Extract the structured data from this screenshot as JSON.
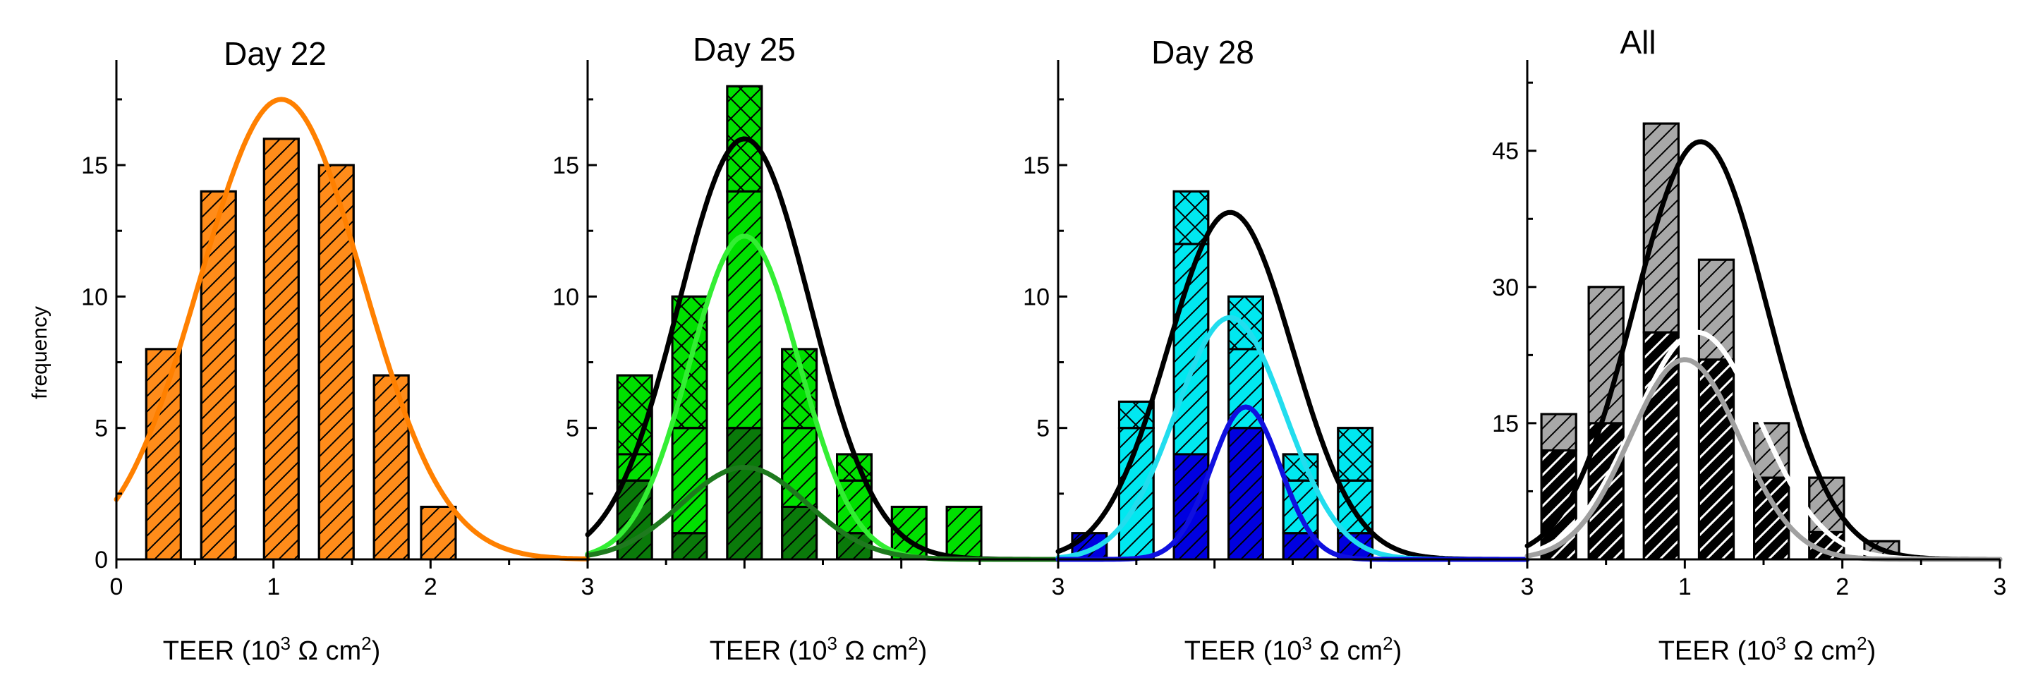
{
  "figure": {
    "ylabel_left": "frequency",
    "xlabel": "TEER (10",
    "xlabel_exp": "3",
    "xlabel_unit": " Ω cm",
    "xlabel_exp2": "2",
    "xlabel_close": ")"
  },
  "chart_data": [
    {
      "type": "bar",
      "title": "Day 22",
      "xlabel": "TEER (10^3 Ω cm^2)",
      "ylabel": "frequency",
      "xlim": [
        0,
        3
      ],
      "ylim": [
        0,
        19
      ],
      "xticks": [
        0,
        1,
        2,
        3
      ],
      "xtick_labels": [
        "0",
        "1",
        "2",
        "3"
      ],
      "yticks": [
        0,
        5,
        10,
        15
      ],
      "ytick_labels": [
        "0",
        "5",
        "10",
        "15"
      ],
      "bin_width": 0.25,
      "bins": [
        {
          "x": 0.3,
          "total": 8
        },
        {
          "x": 0.65,
          "total": 14
        },
        {
          "x": 1.05,
          "total": 16
        },
        {
          "x": 1.4,
          "total": 15
        },
        {
          "x": 1.75,
          "total": 7
        },
        {
          "x": 2.05,
          "total": 2
        }
      ],
      "series": [
        {
          "name": "Day 22",
          "color": "#ff8c1a",
          "hatch": "diag",
          "values": [
            8,
            14,
            16,
            15,
            7,
            2
          ]
        }
      ],
      "fits": [
        {
          "name": "Gaussian fit",
          "color": "#ff8000",
          "amplitude": 17.5,
          "mean": 1.05,
          "sd": 0.52
        }
      ]
    },
    {
      "type": "bar",
      "title": "Day 25",
      "xlabel": "TEER (10^3 Ω cm^2)",
      "xlim": [
        0,
        3
      ],
      "ylim": [
        0,
        19
      ],
      "xticks": [
        0,
        3
      ],
      "xtick_labels": [
        "",
        "3"
      ],
      "yticks": [
        0,
        5,
        10,
        15
      ],
      "ytick_labels": [
        "",
        "5",
        "10",
        "15"
      ],
      "bin_width": 0.25,
      "bins": [
        {
          "x": 0.3,
          "segments": [
            {
              "v": 3,
              "color": "#0a7a0a",
              "hatch": "diag"
            },
            {
              "v": 1,
              "color": "#00e000",
              "hatch": "diag"
            },
            {
              "v": 3,
              "color": "#00e000",
              "hatch": "cross"
            }
          ]
        },
        {
          "x": 0.65,
          "segments": [
            {
              "v": 1,
              "color": "#0a7a0a",
              "hatch": "diag"
            },
            {
              "v": 4,
              "color": "#00e000",
              "hatch": "diag"
            },
            {
              "v": 5,
              "color": "#00e000",
              "hatch": "cross"
            }
          ]
        },
        {
          "x": 1.0,
          "segments": [
            {
              "v": 5,
              "color": "#0a7a0a",
              "hatch": "diag"
            },
            {
              "v": 9,
              "color": "#00e000",
              "hatch": "diag"
            },
            {
              "v": 4,
              "color": "#00e000",
              "hatch": "cross"
            }
          ]
        },
        {
          "x": 1.35,
          "segments": [
            {
              "v": 2,
              "color": "#0a7a0a",
              "hatch": "diag"
            },
            {
              "v": 3,
              "color": "#00e000",
              "hatch": "diag"
            },
            {
              "v": 3,
              "color": "#00e000",
              "hatch": "cross"
            }
          ]
        },
        {
          "x": 1.7,
          "segments": [
            {
              "v": 1,
              "color": "#0a7a0a",
              "hatch": "diag"
            },
            {
              "v": 2,
              "color": "#00e000",
              "hatch": "diag"
            },
            {
              "v": 1,
              "color": "#00e000",
              "hatch": "cross"
            }
          ]
        },
        {
          "x": 2.05,
          "segments": [
            {
              "v": 2,
              "color": "#00e000",
              "hatch": "diag"
            }
          ]
        },
        {
          "x": 2.4,
          "segments": [
            {
              "v": 2,
              "color": "#00e000",
              "hatch": "diag"
            }
          ]
        }
      ],
      "fits": [
        {
          "name": "total",
          "color": "#000000",
          "amplitude": 16,
          "mean": 1.0,
          "sd": 0.42
        },
        {
          "name": "subset light",
          "color": "#33ee33",
          "amplitude": 12.3,
          "mean": 1.0,
          "sd": 0.35
        },
        {
          "name": "subset dark",
          "color": "#1e7a1e",
          "amplitude": 3.5,
          "mean": 1.0,
          "sd": 0.4
        }
      ]
    },
    {
      "type": "bar",
      "title": "Day 28",
      "xlabel": "TEER (10^3 Ω cm^2)",
      "xlim": [
        0,
        3
      ],
      "ylim": [
        0,
        19
      ],
      "xticks": [
        0,
        3
      ],
      "xtick_labels": [
        "",
        "3"
      ],
      "yticks": [
        0,
        5,
        10,
        15
      ],
      "ytick_labels": [
        "",
        "5",
        "10",
        "15"
      ],
      "bin_width": 0.25,
      "bins": [
        {
          "x": 0.2,
          "segments": [
            {
              "v": 1,
              "color": "#0000e0",
              "hatch": "diag"
            }
          ]
        },
        {
          "x": 0.5,
          "segments": [
            {
              "v": 5,
              "color": "#00e8f0",
              "hatch": "diag"
            },
            {
              "v": 1,
              "color": "#00e8f0",
              "hatch": "cross"
            }
          ]
        },
        {
          "x": 0.85,
          "segments": [
            {
              "v": 4,
              "color": "#0000e0",
              "hatch": "diag"
            },
            {
              "v": 8,
              "color": "#00e8f0",
              "hatch": "diag"
            },
            {
              "v": 2,
              "color": "#00e8f0",
              "hatch": "cross"
            }
          ]
        },
        {
          "x": 1.2,
          "segments": [
            {
              "v": 5,
              "color": "#0000e0",
              "hatch": "diag"
            },
            {
              "v": 3,
              "color": "#00e8f0",
              "hatch": "diag"
            },
            {
              "v": 2,
              "color": "#00e8f0",
              "hatch": "cross"
            }
          ]
        },
        {
          "x": 1.55,
          "segments": [
            {
              "v": 1,
              "color": "#0000e0",
              "hatch": "diag"
            },
            {
              "v": 2,
              "color": "#00e8f0",
              "hatch": "diag"
            },
            {
              "v": 1,
              "color": "#00e8f0",
              "hatch": "cross"
            }
          ]
        },
        {
          "x": 1.9,
          "segments": [
            {
              "v": 1,
              "color": "#0000e0",
              "hatch": "diag"
            },
            {
              "v": 2,
              "color": "#00e8f0",
              "hatch": "diag"
            },
            {
              "v": 2,
              "color": "#00e8f0",
              "hatch": "cross"
            }
          ]
        }
      ],
      "fits": [
        {
          "name": "total",
          "color": "#000000",
          "amplitude": 13.2,
          "mean": 1.1,
          "sd": 0.4
        },
        {
          "name": "subset cyan",
          "color": "#22ddee",
          "amplitude": 9.2,
          "mean": 1.1,
          "sd": 0.35
        },
        {
          "name": "subset blue",
          "color": "#1010e0",
          "amplitude": 5.8,
          "mean": 1.2,
          "sd": 0.22
        }
      ]
    },
    {
      "type": "bar",
      "title": "All",
      "xlabel": "TEER (10^3 Ω cm^2)",
      "xlim": [
        0,
        3
      ],
      "ylim": [
        0,
        55
      ],
      "xticks": [
        0,
        1,
        2,
        3
      ],
      "xtick_labels": [
        "",
        "1",
        "2",
        "3"
      ],
      "yticks": [
        15,
        30,
        45
      ],
      "ytick_labels": [
        "15",
        "30",
        "45"
      ],
      "bin_width": 0.25,
      "bins": [
        {
          "x": 0.2,
          "segments": [
            {
              "v": 12,
              "color": "#000000",
              "hatch": "white-diag"
            },
            {
              "v": 4,
              "color": "#a8a8a8",
              "hatch": "diag"
            }
          ]
        },
        {
          "x": 0.5,
          "segments": [
            {
              "v": 15,
              "color": "#000000",
              "hatch": "white-diag"
            },
            {
              "v": 15,
              "color": "#a8a8a8",
              "hatch": "diag"
            }
          ]
        },
        {
          "x": 0.85,
          "segments": [
            {
              "v": 25,
              "color": "#000000",
              "hatch": "white-diag"
            },
            {
              "v": 23,
              "color": "#a8a8a8",
              "hatch": "diag"
            }
          ]
        },
        {
          "x": 1.2,
          "segments": [
            {
              "v": 22,
              "color": "#000000",
              "hatch": "white-diag"
            },
            {
              "v": 11,
              "color": "#a8a8a8",
              "hatch": "diag"
            }
          ]
        },
        {
          "x": 1.55,
          "segments": [
            {
              "v": 9,
              "color": "#000000",
              "hatch": "white-diag"
            },
            {
              "v": 6,
              "color": "#a8a8a8",
              "hatch": "diag"
            }
          ]
        },
        {
          "x": 1.9,
          "segments": [
            {
              "v": 3,
              "color": "#000000",
              "hatch": "white-diag"
            },
            {
              "v": 6,
              "color": "#a8a8a8",
              "hatch": "diag"
            }
          ]
        },
        {
          "x": 2.25,
          "segments": [
            {
              "v": 2,
              "color": "#a8a8a8",
              "hatch": "diag"
            }
          ]
        }
      ],
      "fits": [
        {
          "name": "total",
          "color": "#000000",
          "amplitude": 46,
          "mean": 1.1,
          "sd": 0.42
        },
        {
          "name": "subset white",
          "color": "#ffffff",
          "amplitude": 25,
          "mean": 1.08,
          "sd": 0.4
        },
        {
          "name": "subset gray",
          "color": "#a0a0a0",
          "amplitude": 22,
          "mean": 1.0,
          "sd": 0.35
        }
      ]
    }
  ]
}
